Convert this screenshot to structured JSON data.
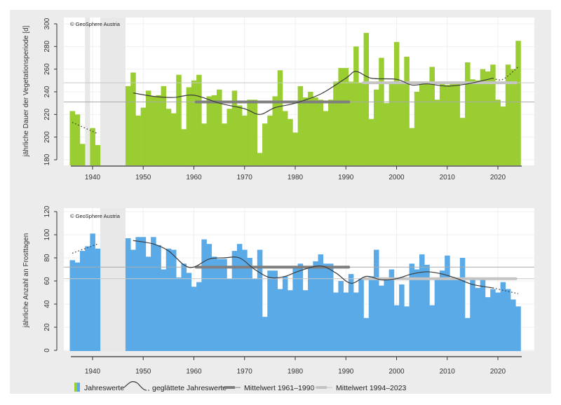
{
  "colors": {
    "top_bars": "#9acd32",
    "bottom_bars": "#5aaae8",
    "smooth_line": "#3a3a3a",
    "mean_1961_1990": "#7f7f7f",
    "mean_1994_2023": "#c4c4c4",
    "missing_band": "#e8e8e8",
    "outer_background": "#ececec"
  },
  "legend": {
    "annual": "Jahreswerte",
    "smoothed": "geglättete Jahreswerte",
    "mean1": "Mittelwert 1961–1990",
    "mean2": "Mittelwert 1994–2023"
  },
  "chart_data": [
    {
      "type": "bar",
      "copyright": "© GeoSphere Austria",
      "ylabel": "jährliche Dauer der Vegetationsperiode [d]",
      "xlabel": "",
      "ylim": [
        180,
        300
      ],
      "yticks": [
        "180",
        "200",
        "220",
        "240",
        "260",
        "280",
        "300"
      ],
      "xticks": [
        "1940",
        "1950",
        "1960",
        "1970",
        "1980",
        "1990",
        "2000",
        "2010",
        "2020"
      ],
      "missing_years": [
        [
          1939,
          1939
        ],
        [
          1942,
          1946
        ]
      ],
      "years": [
        1936,
        1937,
        1938,
        1940,
        1941,
        1947,
        1948,
        1949,
        1950,
        1951,
        1952,
        1953,
        1954,
        1955,
        1956,
        1957,
        1958,
        1959,
        1960,
        1961,
        1962,
        1963,
        1964,
        1965,
        1966,
        1967,
        1968,
        1969,
        1970,
        1971,
        1972,
        1973,
        1974,
        1975,
        1976,
        1977,
        1978,
        1979,
        1980,
        1981,
        1982,
        1983,
        1984,
        1985,
        1986,
        1987,
        1988,
        1989,
        1990,
        1991,
        1992,
        1993,
        1994,
        1995,
        1996,
        1997,
        1998,
        1999,
        2000,
        2001,
        2002,
        2003,
        2004,
        2005,
        2006,
        2007,
        2008,
        2009,
        2010,
        2011,
        2012,
        2013,
        2014,
        2015,
        2016,
        2017,
        2018,
        2019,
        2020,
        2021,
        2022,
        2023,
        2024
      ],
      "values": [
        223,
        220,
        194,
        208,
        193,
        245,
        257,
        219,
        226,
        241,
        236,
        237,
        245,
        225,
        221,
        255,
        207,
        244,
        250,
        255,
        212,
        236,
        237,
        242,
        212,
        225,
        241,
        228,
        219,
        233,
        233,
        186,
        212,
        219,
        236,
        259,
        223,
        216,
        204,
        245,
        235,
        240,
        235,
        233,
        223,
        233,
        249,
        261,
        261,
        249,
        280,
        248,
        292,
        216,
        242,
        270,
        230,
        247,
        284,
        247,
        271,
        208,
        240,
        247,
        247,
        262,
        233,
        247,
        246,
        247,
        247,
        217,
        266,
        251,
        250,
        260,
        258,
        264,
        233,
        227,
        264,
        260,
        285
      ],
      "smoothed": {
        "dotted_early": [
          [
            1936,
            213
          ],
          [
            1941,
            203
          ]
        ],
        "solid": [
          [
            1948,
            239
          ],
          [
            1952,
            236
          ],
          [
            1956,
            235
          ],
          [
            1960,
            237
          ],
          [
            1965,
            230
          ],
          [
            1970,
            225
          ],
          [
            1973,
            220
          ],
          [
            1976,
            226
          ],
          [
            1980,
            230
          ],
          [
            1985,
            238
          ],
          [
            1990,
            252
          ],
          [
            1992,
            258
          ],
          [
            1995,
            252
          ],
          [
            2000,
            251
          ],
          [
            2003,
            246
          ],
          [
            2006,
            247
          ],
          [
            2010,
            245
          ],
          [
            2014,
            247
          ],
          [
            2019,
            252
          ]
        ],
        "dotted_late": [
          [
            2019,
            252
          ],
          [
            2021,
            251
          ],
          [
            2024,
            262
          ]
        ]
      },
      "mean_1961_1990": 231,
      "mean_1994_2023": 248
    },
    {
      "type": "bar",
      "copyright": "© GeoSphere Austria",
      "ylabel": "jährliche Anzahl an Frosttagen",
      "xlabel": "",
      "ylim": [
        0,
        120
      ],
      "yticks": [
        "0",
        "20",
        "40",
        "60",
        "80",
        "100",
        "120"
      ],
      "xticks": [
        "1940",
        "1950",
        "1960",
        "1970",
        "1980",
        "1990",
        "2000",
        "2010",
        "2020"
      ],
      "missing_years": [
        [
          1942,
          1946
        ]
      ],
      "years": [
        1936,
        1937,
        1938,
        1939,
        1940,
        1941,
        1947,
        1948,
        1949,
        1950,
        1951,
        1952,
        1953,
        1954,
        1955,
        1956,
        1957,
        1958,
        1959,
        1960,
        1961,
        1962,
        1963,
        1964,
        1965,
        1966,
        1967,
        1968,
        1969,
        1970,
        1971,
        1972,
        1973,
        1974,
        1975,
        1976,
        1977,
        1978,
        1979,
        1980,
        1981,
        1982,
        1983,
        1984,
        1985,
        1986,
        1987,
        1988,
        1989,
        1990,
        1991,
        1992,
        1993,
        1994,
        1995,
        1996,
        1997,
        1998,
        1999,
        2000,
        2001,
        2002,
        2003,
        2004,
        2005,
        2006,
        2007,
        2008,
        2009,
        2010,
        2011,
        2012,
        2013,
        2014,
        2015,
        2016,
        2017,
        2018,
        2019,
        2020,
        2021,
        2022,
        2023,
        2024
      ],
      "values": [
        78,
        76,
        86,
        90,
        101,
        88,
        97,
        87,
        98,
        98,
        81,
        98,
        91,
        70,
        88,
        87,
        63,
        75,
        67,
        55,
        59,
        96,
        92,
        81,
        79,
        79,
        62,
        86,
        92,
        87,
        80,
        62,
        87,
        29,
        69,
        69,
        53,
        64,
        52,
        73,
        75,
        52,
        72,
        77,
        83,
        75,
        75,
        50,
        60,
        50,
        66,
        50,
        62,
        28,
        64,
        87,
        56,
        62,
        70,
        39,
        57,
        38,
        75,
        70,
        83,
        74,
        39,
        62,
        69,
        82,
        62,
        62,
        80,
        28,
        62,
        54,
        62,
        46,
        53,
        50,
        59,
        53,
        44,
        38
      ],
      "smoothed": {
        "dotted_early": [
          [
            1936,
            84
          ],
          [
            1941,
            92
          ]
        ],
        "solid": [
          [
            1948,
            95
          ],
          [
            1952,
            92
          ],
          [
            1955,
            86
          ],
          [
            1958,
            74
          ],
          [
            1960,
            72
          ],
          [
            1963,
            79
          ],
          [
            1966,
            80
          ],
          [
            1969,
            80
          ],
          [
            1972,
            70
          ],
          [
            1975,
            63
          ],
          [
            1978,
            64
          ],
          [
            1981,
            69
          ],
          [
            1985,
            73
          ],
          [
            1988,
            67
          ],
          [
            1991,
            58
          ],
          [
            1994,
            64
          ],
          [
            1997,
            61
          ],
          [
            2000,
            62
          ],
          [
            2003,
            66
          ],
          [
            2006,
            68
          ],
          [
            2009,
            66
          ],
          [
            2012,
            62
          ],
          [
            2015,
            57
          ],
          [
            2019,
            54
          ]
        ],
        "dotted_late": [
          [
            2019,
            54
          ],
          [
            2024,
            49
          ]
        ]
      },
      "mean_1961_1990": 72,
      "mean_1994_2023": 62
    }
  ]
}
